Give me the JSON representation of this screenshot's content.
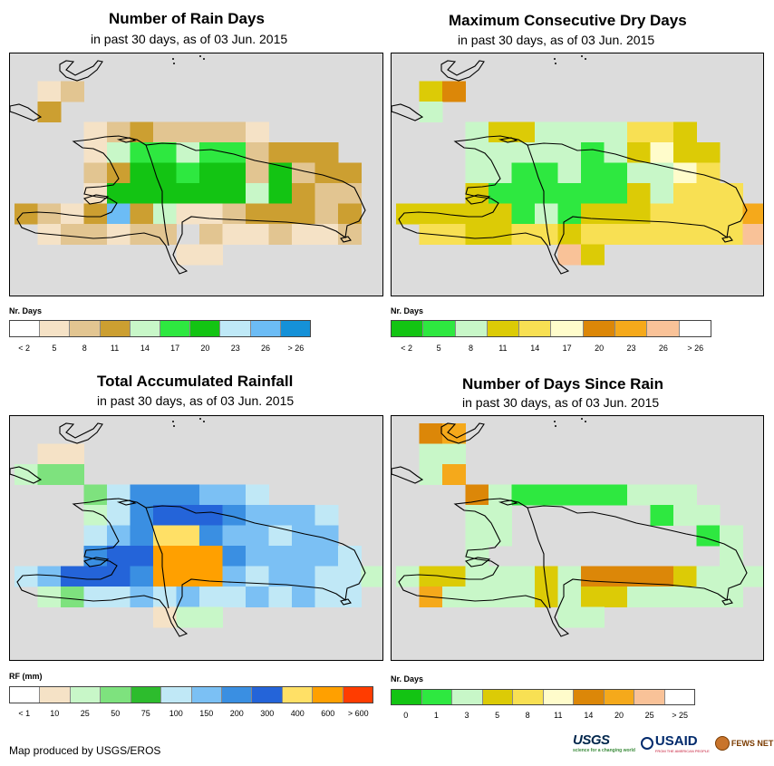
{
  "grid": {
    "cols": 16,
    "rows": 10
  },
  "panels": [
    {
      "id": "rain-days",
      "title": "Number of Rain Days",
      "subtitle": "in past 30 days, as of 03 Jun. 2015",
      "legend_title": "Nr. Days",
      "legend_colors": [
        "#ffffff",
        "#f5e2c6",
        "#e2c591",
        "#cc9f31",
        "#c8f7c8",
        "#2ee840",
        "#13c413",
        "#bfe9f7",
        "#6cbcf5",
        "#1591d8"
      ],
      "legend_labels": [
        "< 2",
        "5",
        "8",
        "11",
        "14",
        "17",
        "20",
        "23",
        "26",
        "> 26"
      ],
      "cells": [
        [
          0,
          0,
          0,
          0,
          0,
          0,
          0,
          0,
          0,
          0,
          0,
          0,
          0,
          0,
          0,
          0
        ],
        [
          0,
          1,
          2,
          0,
          0,
          0,
          0,
          0,
          0,
          0,
          0,
          0,
          0,
          0,
          0,
          0
        ],
        [
          0,
          3,
          0,
          0,
          0,
          0,
          0,
          0,
          0,
          0,
          0,
          0,
          0,
          0,
          0,
          0
        ],
        [
          0,
          0,
          0,
          1,
          2,
          3,
          2,
          2,
          2,
          2,
          1,
          0,
          0,
          0,
          0,
          0
        ],
        [
          0,
          0,
          0,
          1,
          4,
          5,
          5,
          4,
          5,
          5,
          2,
          3,
          3,
          3,
          0,
          0
        ],
        [
          0,
          0,
          0,
          2,
          3,
          6,
          6,
          5,
          6,
          6,
          2,
          6,
          2,
          3,
          3,
          0
        ],
        [
          0,
          0,
          0,
          1,
          6,
          6,
          6,
          6,
          6,
          6,
          4,
          6,
          3,
          2,
          2,
          0
        ],
        [
          3,
          2,
          1,
          3,
          8,
          3,
          4,
          1,
          1,
          2,
          3,
          3,
          3,
          2,
          3,
          0
        ],
        [
          0,
          1,
          2,
          2,
          1,
          2,
          2,
          0,
          2,
          1,
          1,
          2,
          1,
          1,
          2,
          0
        ],
        [
          0,
          0,
          0,
          0,
          0,
          0,
          0,
          1,
          1,
          0,
          0,
          0,
          0,
          0,
          0,
          0
        ]
      ]
    },
    {
      "id": "dry-days",
      "title": "Maximum Consecutive Dry Days",
      "subtitle": "in past 30 days, as of 03 Jun. 2015",
      "legend_title": "Nr. Days",
      "legend_colors": [
        "#13c413",
        "#2ee840",
        "#c8f7c8",
        "#dccb06",
        "#f8e053",
        "#fffccb",
        "#dc8708",
        "#f5a91b",
        "#f9c298",
        "#ffffff"
      ],
      "legend_labels": [
        "< 2",
        "5",
        "8",
        "11",
        "14",
        "17",
        "20",
        "23",
        "26",
        "> 26"
      ],
      "cells": [
        [
          0,
          0,
          0,
          0,
          0,
          0,
          0,
          0,
          0,
          0,
          0,
          0,
          0,
          0,
          0,
          0
        ],
        [
          0,
          3,
          6,
          0,
          0,
          0,
          0,
          0,
          0,
          0,
          0,
          0,
          0,
          0,
          0,
          0
        ],
        [
          0,
          2,
          0,
          0,
          0,
          0,
          0,
          0,
          0,
          0,
          0,
          0,
          0,
          0,
          0,
          0
        ],
        [
          0,
          0,
          0,
          2,
          3,
          3,
          2,
          2,
          2,
          2,
          4,
          4,
          3,
          0,
          0,
          0
        ],
        [
          0,
          0,
          0,
          2,
          2,
          2,
          2,
          2,
          1,
          2,
          3,
          5,
          3,
          3,
          0,
          0
        ],
        [
          0,
          0,
          0,
          2,
          2,
          1,
          1,
          2,
          1,
          1,
          2,
          2,
          5,
          4,
          0,
          0
        ],
        [
          0,
          0,
          0,
          3,
          1,
          1,
          1,
          1,
          1,
          1,
          3,
          2,
          4,
          4,
          4,
          0
        ],
        [
          3,
          3,
          3,
          3,
          3,
          1,
          2,
          1,
          3,
          3,
          3,
          4,
          4,
          4,
          4,
          7
        ],
        [
          0,
          4,
          4,
          3,
          3,
          4,
          4,
          3,
          4,
          4,
          4,
          4,
          4,
          4,
          4,
          8
        ],
        [
          0,
          0,
          0,
          0,
          0,
          0,
          0,
          8,
          3,
          0,
          0,
          0,
          0,
          0,
          0,
          0
        ]
      ]
    },
    {
      "id": "total-rainfall",
      "title": "Total Accumulated Rainfall",
      "subtitle": "in past 30 days, as of 03 Jun. 2015",
      "legend_title": "RF (mm)",
      "legend_colors": [
        "#ffffff",
        "#f5e2c6",
        "#c8f7c8",
        "#7ee27e",
        "#2dbc2d",
        "#c0e8f6",
        "#7bc0f4",
        "#3a8fe2",
        "#2464d9",
        "#ffe066",
        "#ffa000",
        "#ff3c00"
      ],
      "legend_labels": [
        "< 1",
        "10",
        "25",
        "50",
        "75",
        "100",
        "150",
        "200",
        "300",
        "400",
        "600",
        "> 600"
      ],
      "cells": [
        [
          0,
          0,
          0,
          0,
          0,
          0,
          0,
          0,
          0,
          0,
          0,
          0,
          0,
          0,
          0,
          0
        ],
        [
          0,
          1,
          1,
          0,
          0,
          0,
          0,
          0,
          0,
          0,
          0,
          0,
          0,
          0,
          0,
          0
        ],
        [
          2,
          3,
          3,
          0,
          0,
          0,
          0,
          0,
          0,
          0,
          0,
          0,
          0,
          0,
          0,
          0
        ],
        [
          0,
          0,
          0,
          3,
          5,
          7,
          7,
          7,
          6,
          6,
          5,
          0,
          0,
          0,
          0,
          0
        ],
        [
          0,
          0,
          0,
          2,
          5,
          7,
          8,
          8,
          8,
          7,
          6,
          6,
          6,
          5,
          0,
          0
        ],
        [
          0,
          0,
          0,
          5,
          6,
          7,
          9,
          9,
          7,
          6,
          6,
          5,
          6,
          6,
          0,
          0
        ],
        [
          0,
          0,
          0,
          7,
          8,
          8,
          10,
          10,
          10,
          7,
          6,
          6,
          6,
          6,
          5,
          0
        ],
        [
          5,
          6,
          8,
          8,
          8,
          7,
          10,
          10,
          10,
          6,
          5,
          6,
          6,
          5,
          5,
          2
        ],
        [
          0,
          2,
          3,
          5,
          5,
          6,
          5,
          6,
          5,
          5,
          6,
          5,
          6,
          5,
          5,
          0
        ],
        [
          0,
          0,
          0,
          0,
          0,
          0,
          1,
          2,
          2,
          0,
          0,
          0,
          0,
          0,
          0,
          0
        ]
      ]
    },
    {
      "id": "days-since-rain",
      "title": "Number of Days Since Rain",
      "subtitle": "in past 30 days, as of 03 Jun. 2015",
      "legend_title": "Nr. Days",
      "legend_colors": [
        "#13c413",
        "#2ee840",
        "#c8f7c8",
        "#dccb06",
        "#f8e053",
        "#fffccb",
        "#dc8708",
        "#f5a91b",
        "#f9c298",
        "#ffffff"
      ],
      "legend_labels": [
        "0",
        "1",
        "3",
        "5",
        "8",
        "11",
        "14",
        "20",
        "25",
        "> 25"
      ],
      "cells": [
        [
          0,
          6,
          7,
          0,
          0,
          0,
          0,
          0,
          0,
          0,
          0,
          0,
          0,
          0,
          0,
          0
        ],
        [
          0,
          2,
          2,
          0,
          0,
          0,
          0,
          0,
          0,
          0,
          0,
          0,
          0,
          0,
          0,
          0
        ],
        [
          0,
          2,
          7,
          0,
          0,
          0,
          0,
          0,
          0,
          0,
          0,
          0,
          0,
          0,
          0,
          0
        ],
        [
          0,
          0,
          0,
          6,
          2,
          1,
          1,
          1,
          1,
          1,
          2,
          2,
          2,
          0,
          0,
          0
        ],
        [
          0,
          0,
          0,
          2,
          2,
          0,
          0,
          0,
          0,
          0,
          0,
          1,
          2,
          2,
          0,
          0
        ],
        [
          0,
          0,
          0,
          2,
          2,
          0,
          0,
          0,
          0,
          0,
          0,
          0,
          0,
          1,
          2,
          0
        ],
        [
          0,
          0,
          0,
          2,
          0,
          0,
          0,
          0,
          0,
          0,
          0,
          0,
          0,
          0,
          2,
          0
        ],
        [
          2,
          3,
          3,
          2,
          2,
          2,
          3,
          2,
          6,
          6,
          6,
          6,
          3,
          2,
          2,
          2
        ],
        [
          0,
          7,
          2,
          2,
          2,
          2,
          3,
          2,
          3,
          3,
          2,
          2,
          2,
          2,
          2,
          0
        ],
        [
          0,
          0,
          0,
          0,
          0,
          0,
          0,
          2,
          2,
          0,
          0,
          0,
          0,
          0,
          0,
          0
        ]
      ]
    }
  ],
  "footer": "Map produced by USGS/EROS",
  "logos": {
    "usgs": "USGS",
    "usgs_tagline": "science for a changing world",
    "usaid": "USAID",
    "usaid_tagline": "FROM THE AMERICAN PEOPLE",
    "fews": "FEWS NET"
  }
}
